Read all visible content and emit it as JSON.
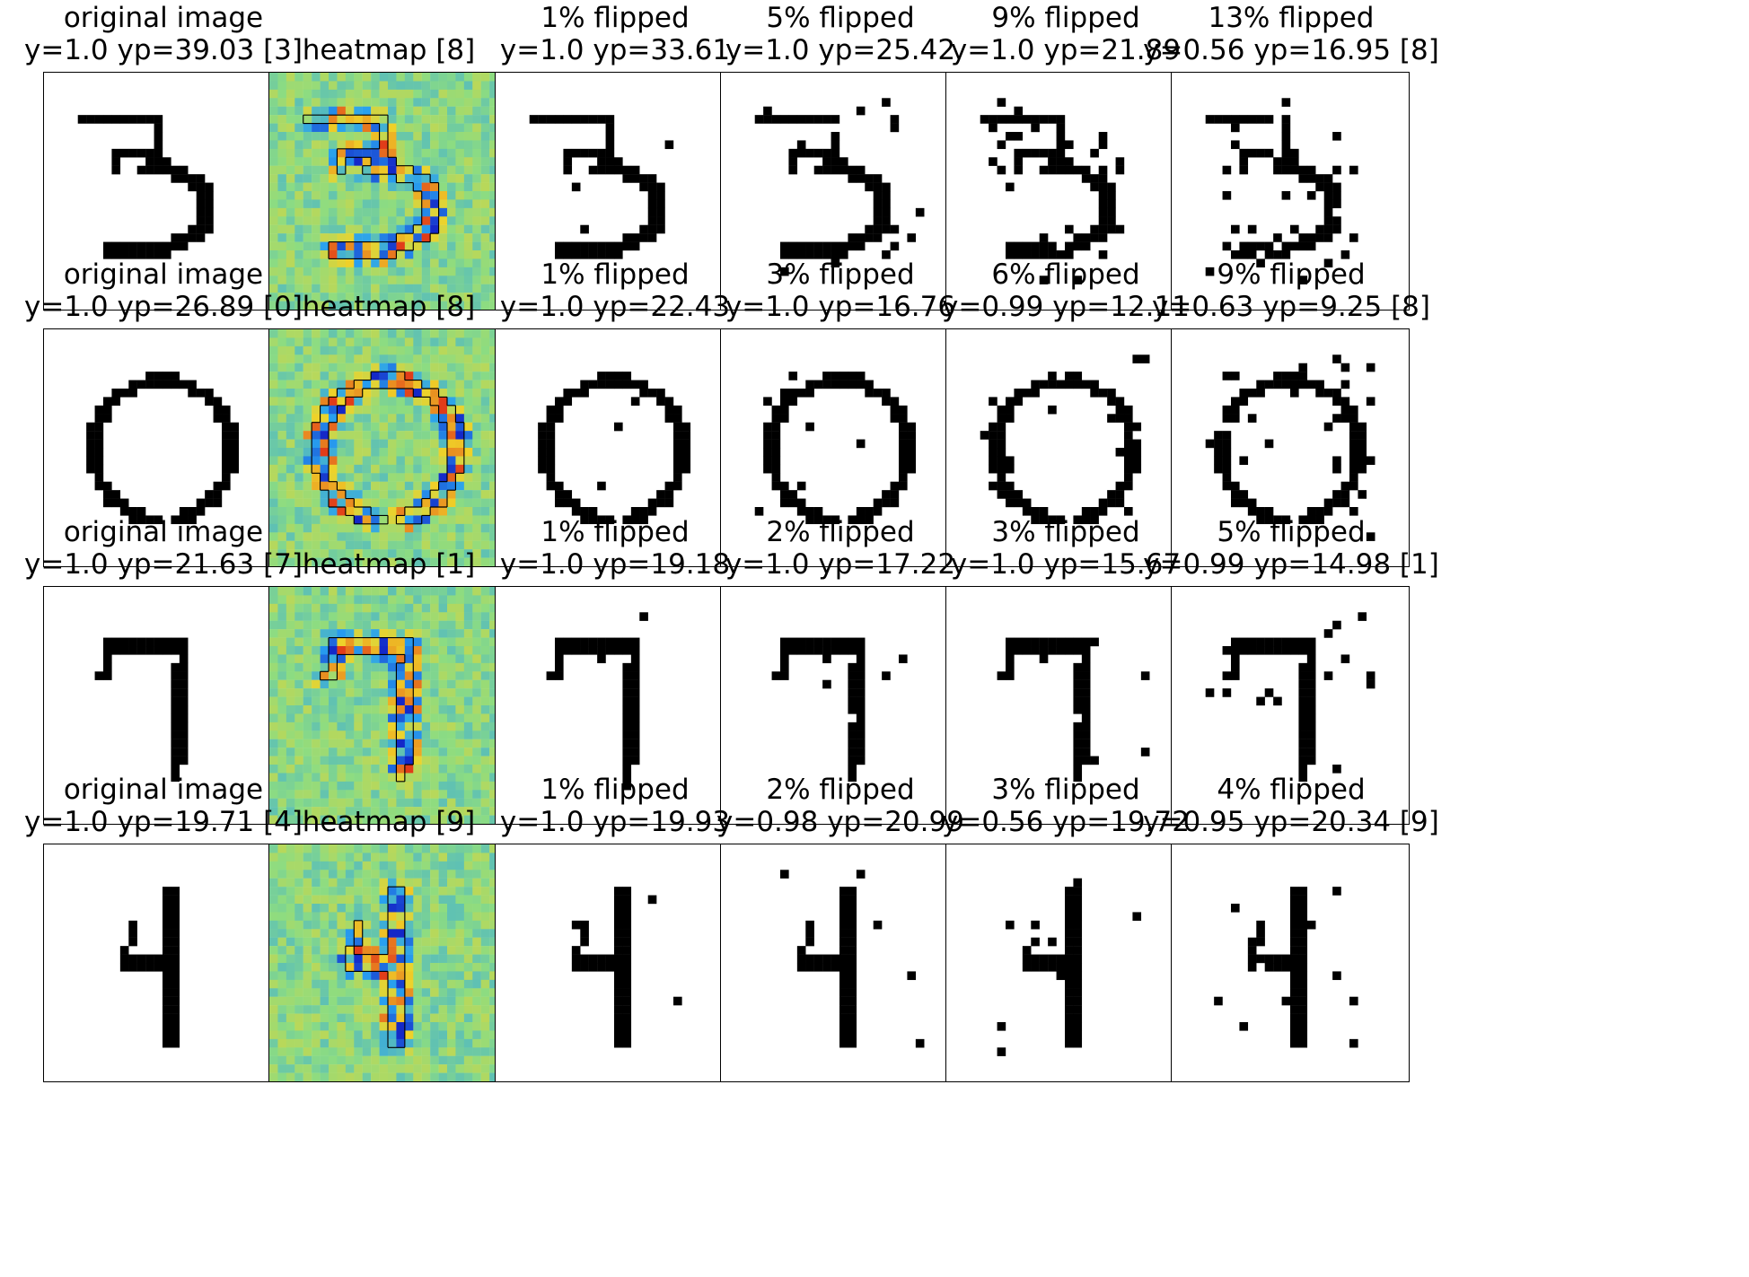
{
  "figure": {
    "rows": [
      {
        "digit": "3",
        "panels": [
          {
            "kind": "original",
            "line1": "original image",
            "line2": "y=1.0 yp=39.03 [3]",
            "flip_fraction": 0
          },
          {
            "kind": "heatmap",
            "line1": "",
            "line2": "heatmap [8]",
            "flip_fraction": 0
          },
          {
            "kind": "flipped",
            "line1": "1% flipped",
            "line2": "y=1.0 yp=33.61",
            "flip_fraction": 0.01
          },
          {
            "kind": "flipped",
            "line1": "5% flipped",
            "line2": "y=1.0 yp=25.42",
            "flip_fraction": 0.05
          },
          {
            "kind": "flipped",
            "line1": "9% flipped",
            "line2": "y=1.0 yp=21.89",
            "flip_fraction": 0.09
          },
          {
            "kind": "flipped",
            "line1": "13% flipped",
            "line2": "y=0.56 yp=16.95 [8]",
            "flip_fraction": 0.13
          }
        ]
      },
      {
        "digit": "0",
        "panels": [
          {
            "kind": "original",
            "line1": "original image",
            "line2": "y=1.0 yp=26.89 [0]",
            "flip_fraction": 0
          },
          {
            "kind": "heatmap",
            "line1": "",
            "line2": "heatmap [8]",
            "flip_fraction": 0
          },
          {
            "kind": "flipped",
            "line1": "1% flipped",
            "line2": "y=1.0 yp=22.43",
            "flip_fraction": 0.01
          },
          {
            "kind": "flipped",
            "line1": "3% flipped",
            "line2": "y=1.0 yp=16.76",
            "flip_fraction": 0.03
          },
          {
            "kind": "flipped",
            "line1": "6% flipped",
            "line2": "y=0.99 yp=12.11",
            "flip_fraction": 0.06
          },
          {
            "kind": "flipped",
            "line1": "9% flipped",
            "line2": "y=0.63 yp=9.25 [8]",
            "flip_fraction": 0.09
          }
        ]
      },
      {
        "digit": "7",
        "panels": [
          {
            "kind": "original",
            "line1": "original image",
            "line2": "y=1.0 yp=21.63 [7]",
            "flip_fraction": 0
          },
          {
            "kind": "heatmap",
            "line1": "",
            "line2": "heatmap [1]",
            "flip_fraction": 0
          },
          {
            "kind": "flipped",
            "line1": "1% flipped",
            "line2": "y=1.0 yp=19.18",
            "flip_fraction": 0.01
          },
          {
            "kind": "flipped",
            "line1": "2% flipped",
            "line2": "y=1.0 yp=17.22",
            "flip_fraction": 0.02
          },
          {
            "kind": "flipped",
            "line1": "3% flipped",
            "line2": "y=1.0 yp=15.67",
            "flip_fraction": 0.03
          },
          {
            "kind": "flipped",
            "line1": "5% flipped",
            "line2": "y=0.99 yp=14.98 [1]",
            "flip_fraction": 0.05
          }
        ]
      },
      {
        "digit": "4",
        "panels": [
          {
            "kind": "original",
            "line1": "original image",
            "line2": "y=1.0 yp=19.71 [4]",
            "flip_fraction": 0
          },
          {
            "kind": "heatmap",
            "line1": "",
            "line2": "heatmap [9]",
            "flip_fraction": 0
          },
          {
            "kind": "flipped",
            "line1": "1% flipped",
            "line2": "y=1.0 yp=19.93",
            "flip_fraction": 0.01
          },
          {
            "kind": "flipped",
            "line1": "2% flipped",
            "line2": "y=0.98 yp=20.99",
            "flip_fraction": 0.02
          },
          {
            "kind": "flipped",
            "line1": "3% flipped",
            "line2": "y=0.56 yp=19.72",
            "flip_fraction": 0.03
          },
          {
            "kind": "flipped",
            "line1": "4% flipped",
            "line2": "y=0.95 yp=20.34 [9]",
            "flip_fraction": 0.04
          }
        ]
      }
    ],
    "colors": {
      "ink": "#000000",
      "paper": "#ffffff",
      "heatmap_base": "#8fe08a",
      "heatmap_negative": "#1f3fd6",
      "heatmap_positive": "#e8431a"
    }
  }
}
